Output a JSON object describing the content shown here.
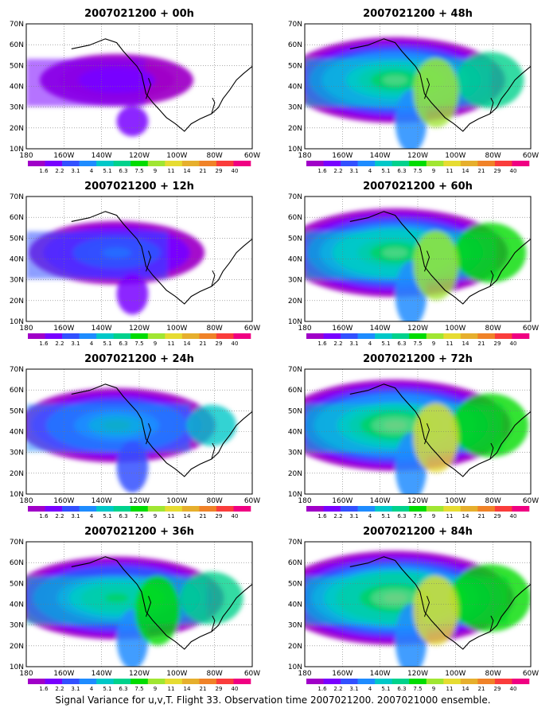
{
  "figure": {
    "caption": "Signal Variance for u,v,T. Flight 33. Observation time 2007021200. 2007021000 ensemble."
  },
  "axes": {
    "lon_labels": [
      "180",
      "160W",
      "140W",
      "120W",
      "100W",
      "80W",
      "60W"
    ],
    "lat_labels": [
      "10N",
      "20N",
      "30N",
      "40N",
      "50N",
      "60N",
      "70N"
    ]
  },
  "colorbar": {
    "labels": [
      "1.6",
      "2.2",
      "3.1",
      "4",
      "5.1",
      "6.3",
      "7.5",
      "9",
      "11",
      "14",
      "21",
      "29",
      "40"
    ],
    "colors": [
      "#a000c8",
      "#7800ff",
      "#3250ff",
      "#1e8cff",
      "#00c8c8",
      "#00d28c",
      "#00dc00",
      "#a0e632",
      "#e6dc32",
      "#e6af2d",
      "#f08228",
      "#fa3c3c",
      "#f00082"
    ]
  },
  "panels": [
    {
      "id": "p00",
      "title": "2007021200 + 00h",
      "intensity": 0.15
    },
    {
      "id": "p48",
      "title": "2007021200 + 48h",
      "intensity": 0.75
    },
    {
      "id": "p12",
      "title": "2007021200 + 12h",
      "intensity": 0.35
    },
    {
      "id": "p60",
      "title": "2007021200 + 60h",
      "intensity": 0.8
    },
    {
      "id": "p24",
      "title": "2007021200 + 24h",
      "intensity": 0.55
    },
    {
      "id": "p72",
      "title": "2007021200 + 72h",
      "intensity": 0.85
    },
    {
      "id": "p36",
      "title": "2007021200 + 36h",
      "intensity": 0.7
    },
    {
      "id": "p84",
      "title": "2007021200 + 84h",
      "intensity": 0.9
    }
  ]
}
